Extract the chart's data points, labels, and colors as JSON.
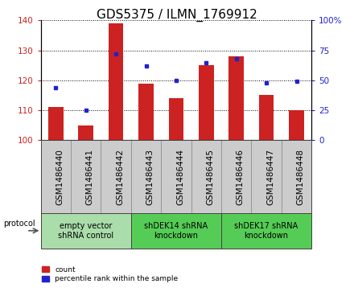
{
  "title": "GDS5375 / ILMN_1769912",
  "samples": [
    "GSM1486440",
    "GSM1486441",
    "GSM1486442",
    "GSM1486443",
    "GSM1486444",
    "GSM1486445",
    "GSM1486446",
    "GSM1486447",
    "GSM1486448"
  ],
  "bar_values": [
    111,
    105,
    139,
    119,
    114,
    125,
    128,
    115,
    110
  ],
  "percentile_values": [
    44,
    25,
    72,
    62,
    50,
    65,
    68,
    48,
    49
  ],
  "bar_bottom": 100,
  "ylim_left": [
    100,
    140
  ],
  "ylim_right": [
    0,
    100
  ],
  "yticks_left": [
    100,
    110,
    120,
    130,
    140
  ],
  "yticks_right": [
    0,
    25,
    50,
    75,
    100
  ],
  "ytick_labels_right": [
    "0",
    "25",
    "50",
    "75",
    "100%"
  ],
  "bar_color": "#cc2222",
  "dot_color": "#2222cc",
  "groups": [
    {
      "label": "empty vector\nshRNA control",
      "start": 0,
      "end": 3,
      "color": "#aaddaa"
    },
    {
      "label": "shDEK14 shRNA\nknockdown",
      "start": 3,
      "end": 6,
      "color": "#55cc55"
    },
    {
      "label": "shDEK17 shRNA\nknockdown",
      "start": 6,
      "end": 9,
      "color": "#55cc55"
    }
  ],
  "protocol_label": "protocol",
  "legend_count": "count",
  "legend_percentile": "percentile rank within the sample",
  "title_fontsize": 11,
  "tick_fontsize": 7.5,
  "label_fontsize": 7,
  "bar_width": 0.5
}
